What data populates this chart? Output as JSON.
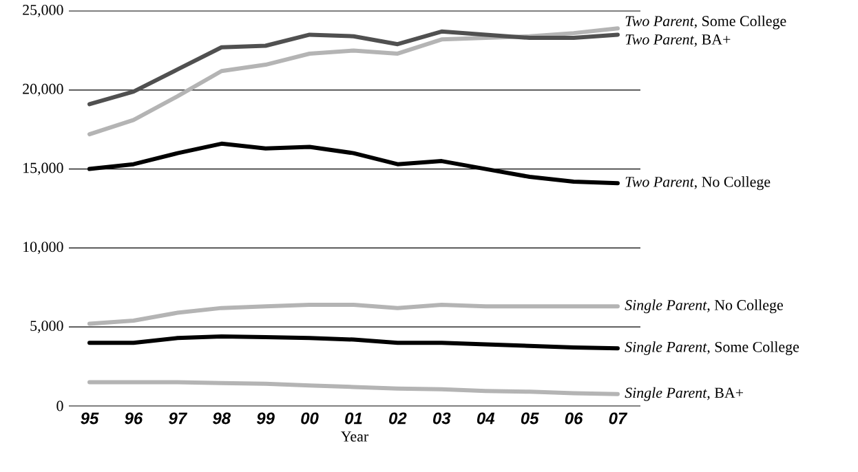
{
  "chart_data": {
    "type": "line",
    "xlabel": "Year",
    "categories": [
      "95",
      "96",
      "97",
      "98",
      "99",
      "00",
      "01",
      "02",
      "03",
      "04",
      "05",
      "06",
      "07"
    ],
    "ylim": [
      0,
      25000
    ],
    "yticks": [
      {
        "value": 0,
        "label": "0"
      },
      {
        "value": 5000,
        "label": "5,000"
      },
      {
        "value": 10000,
        "label": "10,000"
      },
      {
        "value": 15000,
        "label": "15,000"
      },
      {
        "value": 20000,
        "label": "20,000"
      },
      {
        "value": 25000,
        "label": "25,000"
      }
    ],
    "grid": "y",
    "marker": "none",
    "line_style": "solid",
    "series": [
      {
        "name": "*Two Parent*, Some College",
        "color": "#b4b4b4",
        "values": [
          17200,
          18100,
          19600,
          21200,
          21600,
          22300,
          22500,
          22300,
          23200,
          23300,
          23400,
          23600,
          23900
        ]
      },
      {
        "name": "*Two Parent*, BA+",
        "color": "#505050",
        "values": [
          19100,
          19900,
          21300,
          22700,
          22800,
          23500,
          23400,
          22900,
          23700,
          23500,
          23300,
          23300,
          23500
        ]
      },
      {
        "name": "*Two Parent*, No College",
        "color": "#000000",
        "values": [
          15000,
          15300,
          16000,
          16600,
          16300,
          16400,
          16000,
          15300,
          15500,
          15000,
          14500,
          14200,
          14100
        ]
      },
      {
        "name": "*Single Parent*, No College",
        "color": "#b4b4b4",
        "values": [
          5200,
          5400,
          5900,
          6200,
          6300,
          6400,
          6400,
          6200,
          6400,
          6300,
          6300,
          6300,
          6300
        ]
      },
      {
        "name": "*Single Parent*, Some College",
        "color": "#000000",
        "values": [
          4000,
          4000,
          4300,
          4400,
          4350,
          4300,
          4200,
          4000,
          4000,
          3900,
          3800,
          3700,
          3650
        ]
      },
      {
        "name": "*Single Parent*, BA+",
        "color": "#b4b4b4",
        "values": [
          1500,
          1500,
          1500,
          1450,
          1400,
          1300,
          1200,
          1100,
          1050,
          950,
          900,
          800,
          750
        ]
      }
    ]
  }
}
